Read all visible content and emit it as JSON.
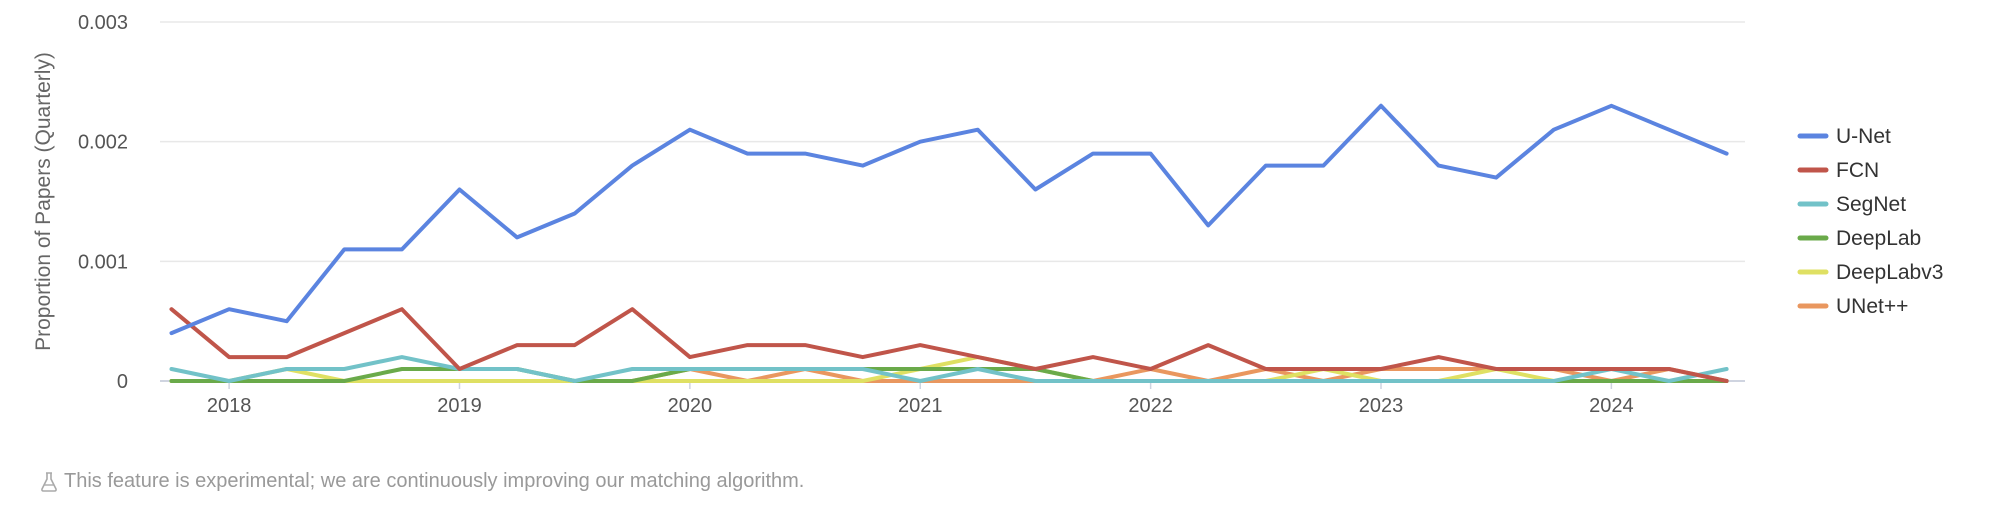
{
  "chart_data": {
    "type": "line",
    "ylabel": "Proportion of Papers (Quarterly)",
    "ylim": [
      0,
      0.003
    ],
    "yticks": [
      {
        "value": 0,
        "label": "0"
      },
      {
        "value": 0.001,
        "label": "0.001"
      },
      {
        "value": 0.002,
        "label": "0.002"
      },
      {
        "value": 0.003,
        "label": "0.003"
      }
    ],
    "xlim": [
      2017.7,
      2024.58
    ],
    "xticks": [
      "2018",
      "2019",
      "2020",
      "2021",
      "2022",
      "2023",
      "2024"
    ],
    "x": [
      2017.75,
      2018.0,
      2018.25,
      2018.5,
      2018.75,
      2019.0,
      2019.25,
      2019.5,
      2019.75,
      2020.0,
      2020.25,
      2020.5,
      2020.75,
      2021.0,
      2021.25,
      2021.5,
      2021.75,
      2022.0,
      2022.25,
      2022.5,
      2022.75,
      2023.0,
      2023.25,
      2023.5,
      2023.75,
      2024.0,
      2024.25,
      2024.5
    ],
    "grid": true,
    "legend": "right",
    "series": [
      {
        "name": "U-Net",
        "color": "#5b84e0",
        "values": [
          0.0004,
          0.0006,
          0.0005,
          0.0011,
          0.0011,
          0.0016,
          0.0012,
          0.0014,
          0.0018,
          0.0021,
          0.0019,
          0.0019,
          0.0018,
          0.002,
          0.0021,
          0.0016,
          0.0019,
          0.0019,
          0.0013,
          0.0018,
          0.0018,
          0.0023,
          0.0018,
          0.0017,
          0.0021,
          0.0023,
          0.0021,
          0.0019
        ]
      },
      {
        "name": "FCN",
        "color": "#c0554a",
        "values": [
          0.0006,
          0.0002,
          0.0002,
          0.0004,
          0.0006,
          0.0001,
          0.0003,
          0.0003,
          0.0006,
          0.0002,
          0.0003,
          0.0003,
          0.0002,
          0.0003,
          0.0002,
          0.0001,
          0.0002,
          0.0001,
          0.0003,
          0.0001,
          0.0001,
          0.0001,
          0.0002,
          0.0001,
          0.0001,
          0.0001,
          0.0001,
          0.0
        ]
      },
      {
        "name": "SegNet",
        "color": "#72c2c8",
        "values": [
          0.0001,
          0.0,
          0.0001,
          0.0001,
          0.0002,
          0.0001,
          0.0001,
          0.0,
          0.0001,
          0.0001,
          0.0001,
          0.0001,
          0.0001,
          0.0,
          0.0001,
          0.0,
          0.0,
          0.0,
          0.0,
          0.0,
          0.0,
          0.0,
          0.0,
          0.0,
          0.0,
          0.0001,
          0.0,
          0.0001
        ]
      },
      {
        "name": "DeepLab",
        "color": "#6aaa4a",
        "values": [
          0.0,
          0.0,
          0.0,
          0.0,
          0.0001,
          0.0001,
          0.0001,
          0.0,
          0.0,
          0.0001,
          0.0001,
          0.0001,
          0.0001,
          0.0001,
          0.0001,
          0.0001,
          0.0,
          0.0,
          0.0,
          0.0,
          0.0,
          0.0,
          0.0,
          0.0,
          0.0,
          0.0,
          0.0,
          0.0
        ]
      },
      {
        "name": "DeepLabv3",
        "color": "#dfe063",
        "values": [
          0.0,
          0.0,
          0.0001,
          0.0,
          0.0,
          0.0,
          0.0,
          0.0,
          0.0,
          0.0,
          0.0,
          0.0,
          0.0,
          0.0001,
          0.0002,
          0.0001,
          0.0,
          0.0,
          0.0,
          0.0,
          0.0001,
          0.0,
          0.0,
          0.0001,
          0.0,
          0.0,
          0.0,
          0.0
        ]
      },
      {
        "name": "UNet++",
        "color": "#e9975f",
        "values": [
          0.0,
          0.0,
          0.0,
          0.0,
          0.0,
          0.0,
          0.0,
          0.0,
          0.0,
          0.0001,
          0.0,
          0.0001,
          0.0,
          0.0,
          0.0,
          0.0,
          0.0,
          0.0001,
          0.0,
          0.0001,
          0.0,
          0.0001,
          0.0001,
          0.0001,
          0.0001,
          0.0,
          0.0001,
          0.0
        ]
      }
    ]
  },
  "footnote": "This feature is experimental; we are continuously improving our matching algorithm.",
  "footnote_icon": "flask-icon"
}
